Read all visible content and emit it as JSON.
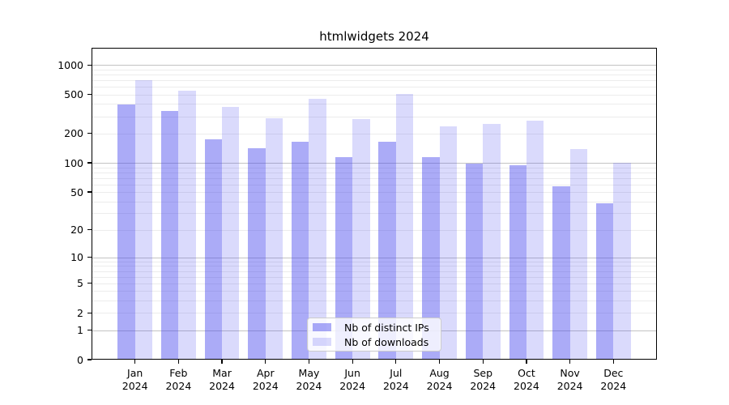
{
  "chart_data": {
    "type": "bar",
    "title": "htmlwidgets 2024",
    "x_categories": [
      "Jan",
      "Feb",
      "Mar",
      "Apr",
      "May",
      "Jun",
      "Jul",
      "Aug",
      "Sep",
      "Oct",
      "Nov",
      "Dec"
    ],
    "x_year": "2024",
    "series": [
      {
        "name": "Nb of distinct IPs",
        "color": "#4444EE73",
        "values": [
          395,
          338,
          173,
          141,
          166,
          114,
          165,
          114,
          98,
          95,
          57,
          38
        ]
      },
      {
        "name": "Nb of downloads",
        "color": "#4444EE33",
        "values": [
          695,
          543,
          377,
          285,
          450,
          279,
          503,
          235,
          252,
          268,
          139,
          101
        ]
      }
    ],
    "y_axis": {
      "scale": "log1p",
      "ticks": [
        0,
        1,
        2,
        5,
        10,
        20,
        50,
        100,
        200,
        500,
        1000
      ],
      "limit_top": 1500
    },
    "grid": {
      "major_lines": [
        1,
        10,
        100,
        1000
      ],
      "minor_lines": [
        2,
        3,
        4,
        5,
        6,
        7,
        8,
        9,
        20,
        30,
        40,
        50,
        60,
        70,
        80,
        90,
        200,
        300,
        400,
        500,
        600,
        700,
        800,
        900
      ],
      "major_color": "#c3c3c3",
      "minor_color": "#ececec"
    },
    "legend": {
      "position": "lower center"
    },
    "xlabel": "",
    "ylabel": ""
  }
}
